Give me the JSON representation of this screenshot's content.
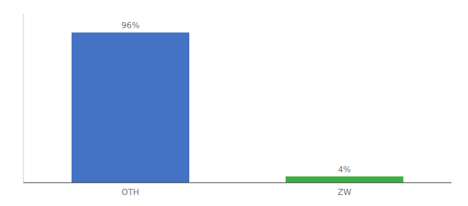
{
  "chart_data": {
    "type": "bar",
    "categories": [
      "OTH",
      "ZW"
    ],
    "values": [
      96,
      4
    ],
    "value_labels": [
      "96%",
      "4%"
    ],
    "colors": [
      "#4472C4",
      "#3CB045"
    ],
    "ylim": [
      0,
      108
    ],
    "yticks": [],
    "data_labels": true,
    "tick_labels": "x"
  }
}
